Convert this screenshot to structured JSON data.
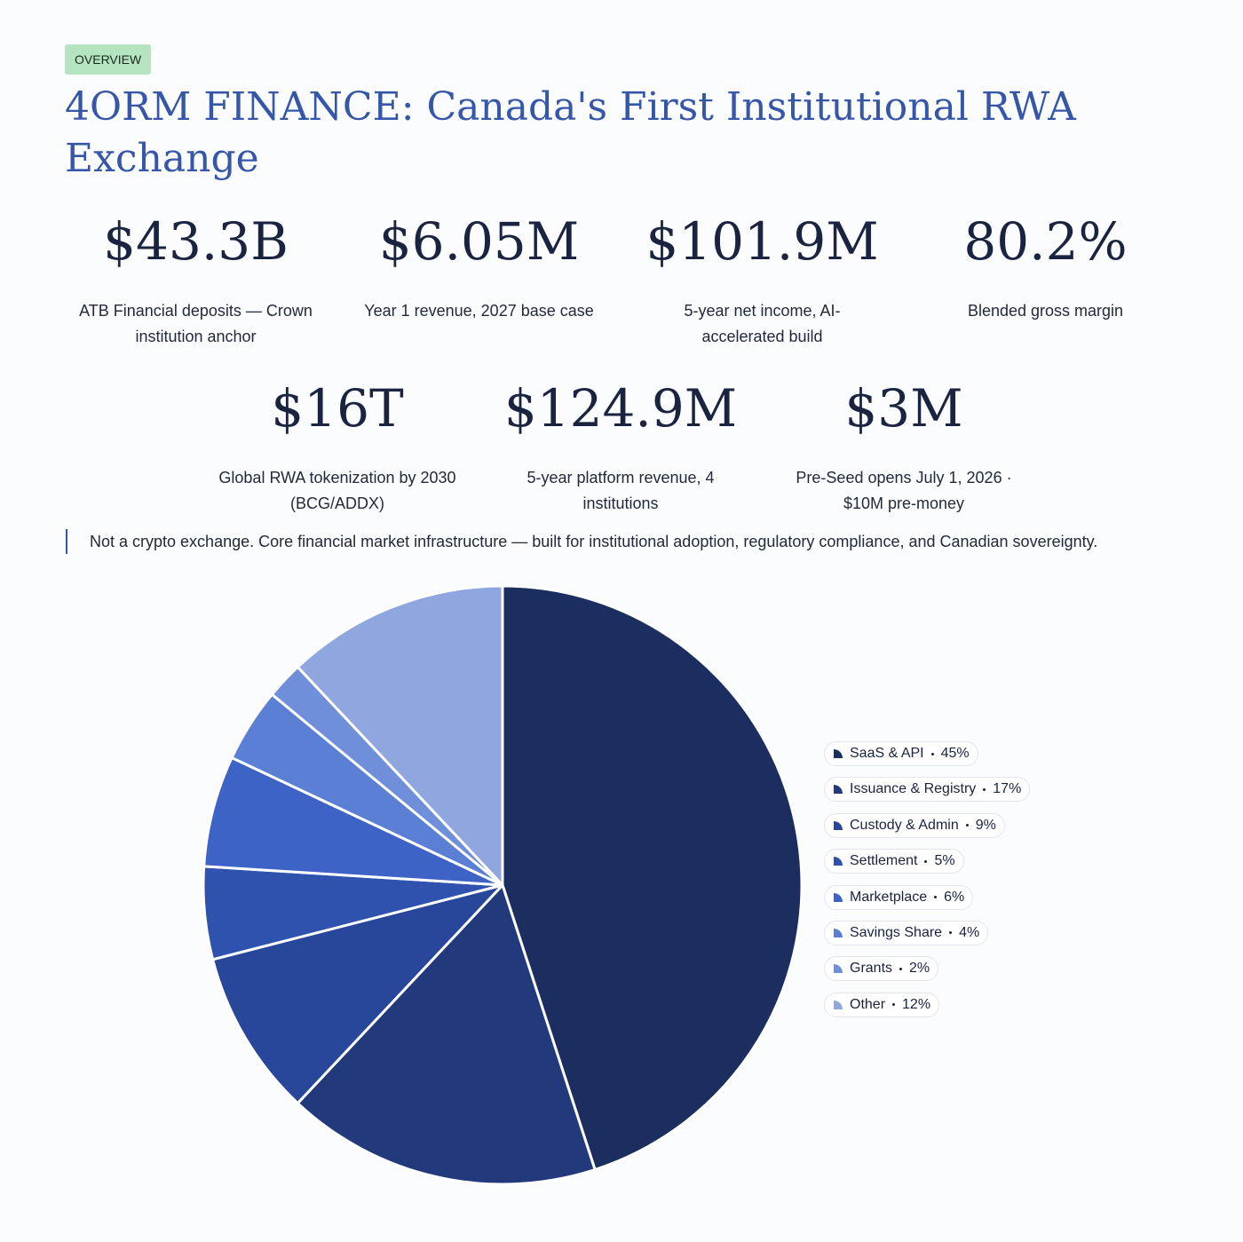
{
  "header": {
    "badge": "OVERVIEW",
    "title": "4ORM FINANCE: Canada's First Institutional RWA Exchange"
  },
  "stats": [
    [
      {
        "value": "$43.3B",
        "label": "ATB Financial deposits — Crown institution anchor"
      },
      {
        "value": "$6.05M",
        "label": "Year 1 revenue, 2027 base case"
      },
      {
        "value": "$101.9M",
        "label": "5-year net income, AI-accelerated build"
      },
      {
        "value": "80.2%",
        "label": "Blended gross margin"
      }
    ],
    [
      {
        "value": "$16T",
        "label": "Global RWA tokenization by 2030 (BCG/ADDX)"
      },
      {
        "value": "$124.9M",
        "label": "5-year platform revenue, 4 institutions"
      },
      {
        "value": "$3M",
        "label": "Pre-Seed opens July 1, 2026 · $10M pre-money"
      }
    ]
  ],
  "note": "Not a crypto exchange. Core financial market infrastructure — built for institutional adoption, regulatory compliance, and Canadian sovereignty.",
  "chart_data": {
    "type": "pie",
    "categories": [
      "SaaS & API",
      "Issuance & Registry",
      "Custody & Admin",
      "Settlement",
      "Marketplace",
      "Savings Share",
      "Grants",
      "Other"
    ],
    "values": [
      45,
      17,
      9,
      5,
      6,
      4,
      2,
      12
    ],
    "value_labels": [
      "45%",
      "17%",
      "9%",
      "5%",
      "6%",
      "4%",
      "2%",
      "12%"
    ],
    "colors": [
      "#1c2d5f",
      "#223a7b",
      "#29479a",
      "#2e52ae",
      "#3d63c7",
      "#5a7fd4",
      "#6f8fdb",
      "#8fa6df"
    ]
  }
}
